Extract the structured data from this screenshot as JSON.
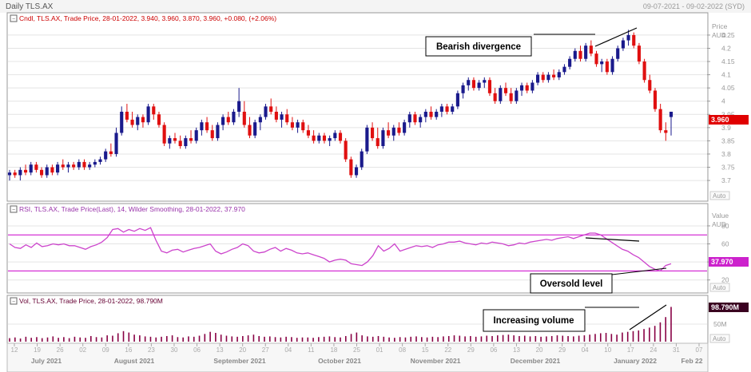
{
  "window": {
    "title": "Daily TLS.AX",
    "date_range": "09-07-2021 - 09-02-2022 (SYD)"
  },
  "price_panel": {
    "legend": "Cndl, TLS.AX, Trade Price, 28-01-2022, 3.940, 3.960, 3.870, 3.960, +0.080, (+2.06%)",
    "axis_title_1": "Price",
    "axis_title_2": "AUD",
    "ticks": [
      "4.25",
      "4.2",
      "4.15",
      "4.1",
      "4.05",
      "4",
      "3.95",
      "3.9",
      "3.85",
      "3.8",
      "3.75",
      "3.7"
    ],
    "last_value": "3.960",
    "auto_label": "Auto",
    "annotation": "Bearish divergence"
  },
  "rsi_panel": {
    "legend": "RSI, TLS.AX, Trade Price(Last), 14, Wilder Smoothing, 28-01-2022, 37.970",
    "axis_title_1": "Value",
    "axis_title_2": "AUD",
    "ticks": [
      "80",
      "60",
      "40",
      "20"
    ],
    "last_value": "37.970",
    "auto_label": "Auto",
    "annotation": "Oversold level"
  },
  "vol_panel": {
    "legend": "Vol, TLS.AX, Trade Price, 28-01-2022, 98.790M",
    "ticks": [
      "50M"
    ],
    "last_value": "98.790M",
    "auto_label": "Auto",
    "annotation": "Increasing volume"
  },
  "time_axis": {
    "day_labels": [
      "12",
      "19",
      "26",
      "02",
      "09",
      "16",
      "23",
      "30",
      "06",
      "13",
      "20",
      "27",
      "04",
      "11",
      "18",
      "25",
      "01",
      "08",
      "15",
      "22",
      "29",
      "06",
      "13",
      "20",
      "29",
      "04",
      "10",
      "17",
      "24",
      "31",
      "07"
    ],
    "month_labels": [
      "July 2021",
      "August 2021",
      "September 2021",
      "October 2021",
      "November 2021",
      "December 2021",
      "January 2022",
      "Feb 22"
    ]
  },
  "colors": {
    "up": "#1a1a8c",
    "down": "#e01010",
    "rsi": "#cc44cc",
    "rsi_level": "#cc00cc",
    "volume": "#880044",
    "price_tag": "#e00000",
    "rsi_tag": "#cc22cc",
    "vol_tag": "#3a0020",
    "grid": "#e4e4e4"
  },
  "chart_data": [
    {
      "type": "candlestick",
      "title": "Cndl, TLS.AX, Trade Price",
      "ylabel": "Price AUD",
      "ylim": [
        3.67,
        4.28
      ],
      "candles": [
        [
          3.72,
          3.74,
          3.7,
          3.73
        ],
        [
          3.73,
          3.74,
          3.71,
          3.72
        ],
        [
          3.72,
          3.75,
          3.7,
          3.74
        ],
        [
          3.74,
          3.76,
          3.72,
          3.73
        ],
        [
          3.73,
          3.77,
          3.72,
          3.76
        ],
        [
          3.76,
          3.77,
          3.73,
          3.74
        ],
        [
          3.74,
          3.75,
          3.71,
          3.72
        ],
        [
          3.72,
          3.76,
          3.71,
          3.75
        ],
        [
          3.75,
          3.76,
          3.72,
          3.73
        ],
        [
          3.73,
          3.77,
          3.72,
          3.76
        ],
        [
          3.76,
          3.78,
          3.74,
          3.75
        ],
        [
          3.75,
          3.77,
          3.73,
          3.76
        ],
        [
          3.76,
          3.77,
          3.74,
          3.75
        ],
        [
          3.75,
          3.78,
          3.74,
          3.77
        ],
        [
          3.77,
          3.78,
          3.74,
          3.75
        ],
        [
          3.75,
          3.77,
          3.74,
          3.76
        ],
        [
          3.76,
          3.78,
          3.75,
          3.77
        ],
        [
          3.77,
          3.79,
          3.76,
          3.78
        ],
        [
          3.78,
          3.82,
          3.77,
          3.81
        ],
        [
          3.81,
          3.84,
          3.79,
          3.8
        ],
        [
          3.8,
          3.9,
          3.79,
          3.88
        ],
        [
          3.88,
          3.98,
          3.87,
          3.96
        ],
        [
          3.96,
          3.99,
          3.92,
          3.93
        ],
        [
          3.93,
          3.96,
          3.9,
          3.91
        ],
        [
          3.91,
          3.95,
          3.89,
          3.94
        ],
        [
          3.94,
          3.95,
          3.9,
          3.92
        ],
        [
          3.92,
          3.99,
          3.91,
          3.98
        ],
        [
          3.98,
          3.99,
          3.93,
          3.95
        ],
        [
          3.95,
          3.96,
          3.9,
          3.91
        ],
        [
          3.91,
          3.92,
          3.83,
          3.84
        ],
        [
          3.84,
          3.87,
          3.82,
          3.86
        ],
        [
          3.86,
          3.88,
          3.84,
          3.85
        ],
        [
          3.85,
          3.87,
          3.82,
          3.83
        ],
        [
          3.83,
          3.87,
          3.82,
          3.86
        ],
        [
          3.86,
          3.89,
          3.84,
          3.85
        ],
        [
          3.85,
          3.9,
          3.84,
          3.89
        ],
        [
          3.89,
          3.93,
          3.87,
          3.92
        ],
        [
          3.92,
          3.94,
          3.88,
          3.89
        ],
        [
          3.89,
          3.91,
          3.85,
          3.86
        ],
        [
          3.86,
          3.92,
          3.85,
          3.91
        ],
        [
          3.91,
          3.95,
          3.89,
          3.94
        ],
        [
          3.94,
          3.96,
          3.91,
          3.92
        ],
        [
          3.92,
          3.97,
          3.91,
          3.96
        ],
        [
          3.96,
          4.05,
          3.94,
          4.0
        ],
        [
          3.96,
          4.0,
          3.9,
          3.91
        ],
        [
          3.91,
          3.94,
          3.86,
          3.87
        ],
        [
          3.87,
          3.93,
          3.86,
          3.92
        ],
        [
          3.92,
          3.95,
          3.89,
          3.94
        ],
        [
          3.94,
          3.99,
          3.93,
          3.98
        ],
        [
          3.98,
          4.01,
          3.95,
          3.96
        ],
        [
          3.96,
          3.98,
          3.92,
          3.93
        ],
        [
          3.93,
          3.96,
          3.9,
          3.95
        ],
        [
          3.95,
          3.97,
          3.91,
          3.92
        ],
        [
          3.92,
          3.94,
          3.89,
          3.9
        ],
        [
          3.9,
          3.93,
          3.88,
          3.92
        ],
        [
          3.92,
          3.93,
          3.88,
          3.89
        ],
        [
          3.89,
          3.91,
          3.86,
          3.87
        ],
        [
          3.87,
          3.89,
          3.84,
          3.85
        ],
        [
          3.85,
          3.88,
          3.84,
          3.87
        ],
        [
          3.87,
          3.88,
          3.84,
          3.85
        ],
        [
          3.85,
          3.87,
          3.83,
          3.86
        ],
        [
          3.86,
          3.89,
          3.85,
          3.88
        ],
        [
          3.88,
          3.89,
          3.84,
          3.85
        ],
        [
          3.85,
          3.86,
          3.77,
          3.78
        ],
        [
          3.78,
          3.79,
          3.71,
          3.72
        ],
        [
          3.72,
          3.76,
          3.71,
          3.75
        ],
        [
          3.75,
          3.82,
          3.74,
          3.81
        ],
        [
          3.81,
          3.91,
          3.8,
          3.9
        ],
        [
          3.9,
          3.92,
          3.85,
          3.86
        ],
        [
          3.86,
          3.9,
          3.82,
          3.83
        ],
        [
          3.83,
          3.9,
          3.82,
          3.89
        ],
        [
          3.89,
          3.92,
          3.86,
          3.87
        ],
        [
          3.87,
          3.91,
          3.85,
          3.9
        ],
        [
          3.9,
          3.92,
          3.87,
          3.88
        ],
        [
          3.88,
          3.93,
          3.87,
          3.92
        ],
        [
          3.92,
          3.96,
          3.9,
          3.95
        ],
        [
          3.95,
          3.96,
          3.91,
          3.92
        ],
        [
          3.92,
          3.95,
          3.9,
          3.94
        ],
        [
          3.94,
          3.97,
          3.92,
          3.96
        ],
        [
          3.96,
          3.98,
          3.93,
          3.94
        ],
        [
          3.94,
          3.97,
          3.93,
          3.96
        ],
        [
          3.96,
          3.99,
          3.94,
          3.98
        ],
        [
          3.98,
          3.99,
          3.95,
          3.96
        ],
        [
          3.96,
          3.99,
          3.95,
          3.98
        ],
        [
          3.98,
          4.04,
          3.97,
          4.03
        ],
        [
          4.03,
          4.07,
          4.01,
          4.06
        ],
        [
          4.06,
          4.09,
          4.04,
          4.08
        ],
        [
          4.08,
          4.09,
          4.04,
          4.05
        ],
        [
          4.05,
          4.08,
          4.04,
          4.07
        ],
        [
          4.07,
          4.09,
          4.05,
          4.08
        ],
        [
          4.08,
          4.09,
          4.02,
          4.03
        ],
        [
          4.03,
          4.05,
          3.99,
          4.0
        ],
        [
          4.0,
          4.06,
          3.99,
          4.05
        ],
        [
          4.05,
          4.07,
          4.02,
          4.03
        ],
        [
          4.03,
          4.05,
          3.99,
          4.0
        ],
        [
          4.0,
          4.05,
          3.99,
          4.04
        ],
        [
          4.04,
          4.07,
          4.02,
          4.06
        ],
        [
          4.06,
          4.07,
          4.03,
          4.04
        ],
        [
          4.04,
          4.08,
          4.03,
          4.07
        ],
        [
          4.07,
          4.11,
          4.06,
          4.1
        ],
        [
          4.1,
          4.11,
          4.07,
          4.08
        ],
        [
          4.08,
          4.11,
          4.07,
          4.1
        ],
        [
          4.1,
          4.12,
          4.08,
          4.09
        ],
        [
          4.09,
          4.12,
          4.08,
          4.11
        ],
        [
          4.11,
          4.14,
          4.1,
          4.13
        ],
        [
          4.13,
          4.17,
          4.12,
          4.16
        ],
        [
          4.16,
          4.2,
          4.15,
          4.19
        ],
        [
          4.19,
          4.21,
          4.15,
          4.16
        ],
        [
          4.16,
          4.22,
          4.15,
          4.21
        ],
        [
          4.21,
          4.23,
          4.17,
          4.18
        ],
        [
          4.18,
          4.19,
          4.13,
          4.14
        ],
        [
          4.14,
          4.16,
          4.11,
          4.15
        ],
        [
          4.15,
          4.16,
          4.1,
          4.11
        ],
        [
          4.11,
          4.17,
          4.1,
          4.16
        ],
        [
          4.16,
          4.21,
          4.15,
          4.2
        ],
        [
          4.2,
          4.24,
          4.19,
          4.23
        ],
        [
          4.23,
          4.27,
          4.21,
          4.25
        ],
        [
          4.25,
          4.26,
          4.2,
          4.21
        ],
        [
          4.21,
          4.22,
          4.14,
          4.15
        ],
        [
          4.15,
          4.16,
          4.07,
          4.08
        ],
        [
          4.08,
          4.1,
          4.03,
          4.04
        ],
        [
          4.04,
          4.05,
          3.96,
          3.97
        ],
        [
          3.97,
          3.99,
          3.88,
          3.89
        ],
        [
          3.89,
          3.92,
          3.85,
          3.88
        ],
        [
          3.94,
          3.96,
          3.87,
          3.96
        ]
      ]
    },
    {
      "type": "line",
      "title": "RSI, TLS.AX, Trade Price(Last), 14, Wilder Smoothing",
      "ylim": [
        10,
        95
      ],
      "levels": [
        70,
        30
      ],
      "values": [
        60,
        56,
        55,
        59,
        56,
        61,
        57,
        58,
        60,
        59,
        60,
        58,
        58,
        56,
        54,
        57,
        59,
        62,
        67,
        76,
        77,
        73,
        76,
        74,
        77,
        75,
        78,
        64,
        52,
        50,
        53,
        54,
        51,
        53,
        55,
        56,
        58,
        60,
        52,
        49,
        51,
        54,
        56,
        60,
        58,
        52,
        50,
        51,
        54,
        56,
        52,
        55,
        53,
        50,
        49,
        50,
        48,
        46,
        44,
        40,
        42,
        43,
        42,
        38,
        37,
        36,
        40,
        47,
        58,
        52,
        55,
        60,
        52,
        54,
        56,
        58,
        57,
        58,
        56,
        59,
        60,
        62,
        62,
        63,
        61,
        60,
        59,
        61,
        60,
        62,
        61,
        60,
        58,
        59,
        61,
        60,
        62,
        63,
        64,
        65,
        64,
        66,
        67,
        68,
        66,
        68,
        70,
        72,
        72,
        70,
        66,
        62,
        58,
        54,
        52,
        48,
        45,
        40,
        35,
        32,
        30,
        36,
        38
      ]
    },
    {
      "type": "bar",
      "title": "Vol, TLS.AX, Trade Price",
      "ylim": [
        0,
        100
      ],
      "values": [
        10,
        12,
        9,
        14,
        11,
        13,
        10,
        12,
        15,
        11,
        13,
        10,
        14,
        12,
        11,
        16,
        13,
        12,
        18,
        17,
        24,
        30,
        26,
        20,
        18,
        15,
        14,
        12,
        14,
        16,
        18,
        13,
        12,
        15,
        14,
        17,
        22,
        28,
        25,
        20,
        17,
        15,
        14,
        16,
        18,
        20,
        16,
        14,
        15,
        13,
        12,
        14,
        13,
        11,
        12,
        12,
        11,
        13,
        14,
        15,
        13,
        12,
        16,
        22,
        26,
        18,
        15,
        14,
        16,
        14,
        12,
        11,
        13,
        12,
        14,
        15,
        13,
        12,
        14,
        13,
        15,
        16,
        18,
        17,
        15,
        16,
        14,
        15,
        17,
        16,
        18,
        19,
        20,
        18,
        16,
        17,
        15,
        16,
        14,
        15,
        16,
        18,
        17,
        16,
        15,
        17,
        18,
        20,
        22,
        24,
        25,
        22,
        20,
        26,
        28,
        30,
        32,
        36,
        40,
        45,
        55,
        70,
        99
      ]
    }
  ]
}
